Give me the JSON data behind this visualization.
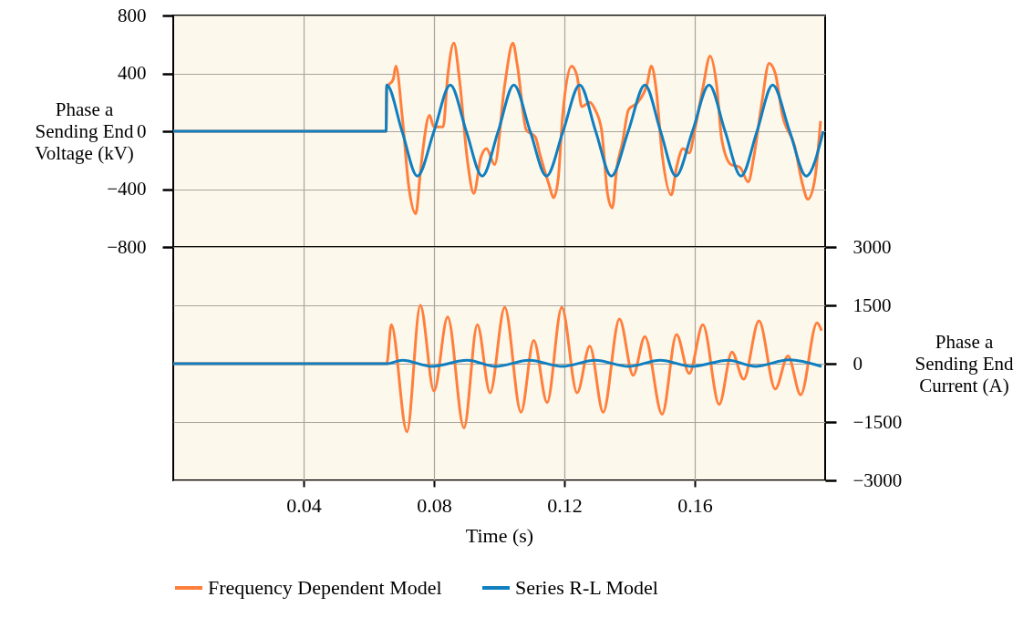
{
  "chart_data": [
    {
      "type": "line",
      "ylabel": "Phase a\nSending End\nVoltage (kV)",
      "xlim": [
        0,
        0.2
      ],
      "xticks": [
        0.04,
        0.08,
        0.12,
        0.16
      ],
      "ylim": [
        -800,
        800
      ],
      "yticks": [
        -800,
        -400,
        0,
        400,
        800
      ],
      "grid": true,
      "tick_labels": "y",
      "series": [
        {
          "color": "#ff7f3c",
          "x": [
            0,
            0.0653,
            0.0655,
            0.0675,
            0.0683,
            0.0703,
            0.0722,
            0.0744,
            0.0758,
            0.0767,
            0.0786,
            0.08,
            0.0828,
            0.0842,
            0.0861,
            0.0878,
            0.0903,
            0.0922,
            0.0944,
            0.0961,
            0.0986,
            0.1017,
            0.1042,
            0.1056,
            0.1083,
            0.1111,
            0.1125,
            0.1153,
            0.1167,
            0.1181,
            0.1194,
            0.1222,
            0.1239,
            0.1253,
            0.1278,
            0.1294,
            0.1314,
            0.1333,
            0.1347,
            0.1361,
            0.1378,
            0.1397,
            0.1425,
            0.1453,
            0.1467,
            0.1481,
            0.15,
            0.1528,
            0.1544,
            0.1564,
            0.1583,
            0.16,
            0.1625,
            0.1647,
            0.1667,
            0.1683,
            0.1711,
            0.1739,
            0.1764,
            0.1781,
            0.1806,
            0.1828,
            0.1847,
            0.1869,
            0.1906,
            0.1931,
            0.1947,
            0.1967,
            0.1986
          ],
          "values": [
            0,
            0,
            300,
            360,
            450,
            90,
            -370,
            -570,
            -290,
            -110,
            110,
            30,
            30,
            380,
            610,
            360,
            -210,
            -430,
            -180,
            -120,
            -230,
            320,
            610,
            450,
            10,
            -40,
            -160,
            -370,
            -460,
            -330,
            90,
            450,
            380,
            170,
            200,
            150,
            10,
            -440,
            -530,
            -250,
            -80,
            150,
            200,
            320,
            450,
            300,
            -160,
            -440,
            -250,
            -120,
            -150,
            10,
            300,
            520,
            320,
            -60,
            -230,
            -250,
            -350,
            -180,
            200,
            470,
            400,
            110,
            -100,
            -370,
            -470,
            -350,
            70
          ]
        },
        {
          "color": "#0f7fc0",
          "x": [
            0,
            0.0653,
            0.0655,
            0.0702,
            0.0749,
            0.08,
            0.085,
            0.0899,
            0.0948,
            0.0997,
            0.1045,
            0.1095,
            0.1145,
            0.1196,
            0.1247,
            0.1296,
            0.1344,
            0.1396,
            0.1447,
            0.1495,
            0.1542,
            0.1593,
            0.1644,
            0.1693,
            0.1742,
            0.1791,
            0.1839,
            0.1891,
            0.1942,
            0.1994
          ],
          "values": [
            0,
            0,
            320,
            0,
            -310,
            0,
            320,
            0,
            -310,
            0,
            320,
            0,
            -310,
            0,
            320,
            0,
            -310,
            0,
            320,
            0,
            -310,
            0,
            320,
            0,
            -310,
            0,
            320,
            0,
            -310,
            0
          ]
        }
      ]
    },
    {
      "type": "line",
      "xlabel": "Time (s)",
      "y2label": "Phase a\nSending End\nCurrent (A)",
      "xlim": [
        0,
        0.2
      ],
      "xticks": [
        0.04,
        0.08,
        0.12,
        0.16
      ],
      "y2lim": [
        -3000,
        3000
      ],
      "y2ticks": [
        -3000,
        -1500,
        0,
        1500,
        3000
      ],
      "grid": true,
      "legend": "bottom",
      "series": [
        {
          "name": "Frequency Dependent Model",
          "color": "#ff7f3c",
          "axis": "y2",
          "x": [
            0,
            0.0655,
            0.0669,
            0.0717,
            0.0758,
            0.08,
            0.0842,
            0.0892,
            0.0933,
            0.0972,
            0.1017,
            0.1067,
            0.1106,
            0.1147,
            0.1192,
            0.1239,
            0.1278,
            0.1319,
            0.1369,
            0.1411,
            0.1447,
            0.15,
            0.1544,
            0.1583,
            0.1625,
            0.1675,
            0.1714,
            0.175,
            0.1797,
            0.1847,
            0.1886,
            0.1925,
            0.1975,
            0.1989
          ],
          "values": [
            0,
            0,
            1000,
            -1750,
            1500,
            -700,
            1200,
            -1650,
            1000,
            -750,
            1450,
            -1250,
            600,
            -1000,
            1450,
            -750,
            450,
            -1250,
            1150,
            -300,
            700,
            -1300,
            750,
            -250,
            1000,
            -1050,
            300,
            -400,
            1100,
            -650,
            200,
            -800,
            1050,
            850
          ]
        },
        {
          "name": "Series R-L Model",
          "color": "#0f7fc0",
          "axis": "y2",
          "x": [
            0,
            0.0655,
            0.0703,
            0.0794,
            0.0903,
            0.0989,
            0.1092,
            0.1194,
            0.1294,
            0.1397,
            0.1494,
            0.1592,
            0.1703,
            0.1786,
            0.1889,
            0.1989
          ],
          "values": [
            0,
            0,
            90,
            -70,
            90,
            -70,
            90,
            -70,
            90,
            -70,
            90,
            -70,
            90,
            -70,
            100,
            -70
          ]
        }
      ]
    }
  ]
}
